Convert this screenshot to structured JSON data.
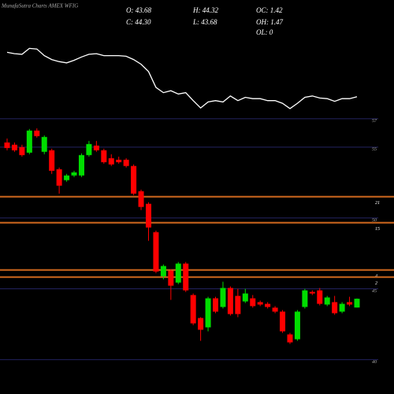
{
  "chart_data": {
    "type": "candlestick",
    "title": "MunafaSutra Charts AMEX WFIG",
    "info": [
      "O: 43.68",
      "H: 44.32",
      "OC: 1.42",
      "C: 44.30",
      "L: 43.68",
      "OH: 1.47",
      "OL: 0"
    ],
    "ylim": [
      38.8,
      57.6
    ],
    "yticks": [
      57,
      55,
      50,
      45,
      40
    ],
    "grid": true,
    "grid_color": "#23235e",
    "levels": [
      {
        "value": 51.5,
        "label": "21"
      },
      {
        "value": 49.67,
        "label": "15"
      },
      {
        "value": 46.33,
        "label": "4"
      },
      {
        "value": 45.83,
        "label": "2"
      }
    ],
    "level_color": "#d2691e",
    "up_color": "#00dd00",
    "down_color": "#ff0000",
    "series": [
      {
        "open": [
          55.33,
          55.17,
          55.0,
          54.61,
          56.17,
          54.67,
          54.78,
          53.44,
          52.67,
          53.0,
          53.0,
          54.44,
          55.11,
          54.78,
          54.22,
          54.11,
          54.11,
          53.67,
          51.89,
          51.0,
          49.0,
          45.89,
          46.28,
          45.44,
          46.78,
          44.56,
          42.94,
          42.28,
          44.33,
          43.72,
          45.06,
          44.5,
          44.11,
          44.33,
          44.06,
          43.94,
          43.67,
          43.39,
          41.78,
          41.44,
          43.72,
          44.78,
          44.89,
          43.89,
          44.06,
          43.39,
          44.06,
          43.68
        ],
        "high": [
          55.61,
          55.33,
          55.17,
          56.28,
          56.33,
          55.83,
          54.89,
          53.56,
          53.11,
          53.33,
          54.56,
          55.44,
          55.44,
          54.89,
          54.5,
          54.33,
          54.22,
          53.78,
          52.0,
          51.11,
          49.11,
          46.72,
          46.39,
          46.89,
          46.89,
          44.67,
          43.0,
          44.44,
          44.44,
          45.5,
          45.17,
          45.0,
          45.0,
          44.56,
          44.17,
          44.06,
          43.78,
          43.5,
          41.89,
          43.5,
          45.0,
          44.89,
          45.06,
          44.5,
          44.5,
          44.06,
          44.44,
          44.32
        ],
        "low": [
          54.78,
          54.67,
          54.33,
          54.5,
          55.67,
          54.5,
          53.11,
          51.72,
          52.56,
          52.89,
          52.89,
          54.33,
          54.67,
          53.83,
          53.67,
          53.83,
          53.56,
          51.61,
          50.56,
          48.39,
          46.11,
          45.67,
          44.22,
          45.33,
          44.78,
          42.44,
          41.33,
          42.0,
          43.28,
          43.61,
          43.11,
          43.0,
          44.0,
          43.67,
          43.78,
          43.61,
          43.28,
          41.89,
          41.11,
          41.33,
          43.61,
          44.56,
          43.83,
          43.78,
          43.17,
          43.28,
          43.78,
          43.68
        ],
        "close": [
          54.94,
          54.78,
          54.44,
          56.17,
          55.78,
          55.72,
          53.33,
          52.28,
          53.0,
          53.22,
          54.44,
          55.22,
          54.78,
          53.94,
          53.78,
          53.94,
          53.67,
          51.72,
          50.78,
          49.33,
          46.22,
          46.61,
          45.22,
          46.78,
          44.89,
          42.56,
          42.11,
          44.33,
          43.39,
          45.06,
          43.22,
          43.22,
          44.67,
          43.78,
          43.89,
          43.72,
          43.39,
          42.0,
          41.22,
          43.39,
          44.89,
          44.67,
          43.94,
          44.39,
          43.28,
          43.94,
          43.89,
          44.3
        ]
      }
    ],
    "indicator": {
      "color": "#ffffff",
      "ylim": [
        0,
        100
      ],
      "values": [
        90,
        88,
        87,
        96,
        95,
        85,
        79,
        76,
        74,
        78,
        83,
        87,
        88,
        85,
        85,
        85,
        84,
        79,
        72,
        61,
        37,
        29,
        32,
        27,
        29,
        17,
        6,
        15,
        17,
        15,
        24,
        17,
        22,
        20,
        20,
        17,
        17,
        13,
        5,
        13,
        22,
        24,
        21,
        20,
        16,
        20,
        20,
        23
      ]
    }
  }
}
